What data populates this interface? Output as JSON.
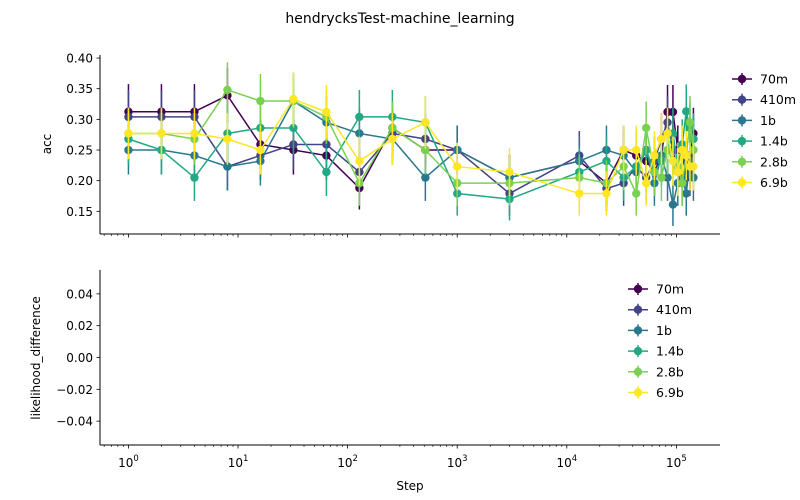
{
  "figure": {
    "title": "hendrycksTest-machine_learning",
    "xlabel": "Step"
  },
  "colors": {
    "70m": "#440154",
    "410m": "#414487",
    "1b": "#2a788e",
    "1.4b": "#22a884",
    "2.8b": "#7ad151",
    "6.9b": "#fde725"
  },
  "chart_data": [
    {
      "type": "line",
      "error_bars": true,
      "xscale": "log",
      "xlim": [
        0.55,
        250000
      ],
      "xticks": [
        "10^0",
        "10^1",
        "10^2",
        "10^3",
        "10^4",
        "10^5"
      ],
      "ylabel": "acc",
      "ylim": [
        0.113,
        0.405
      ],
      "yticks": [
        "0.15",
        "0.20",
        "0.25",
        "0.30",
        "0.35",
        "0.40"
      ],
      "legend": "upper right outside",
      "series": [
        {
          "name": "70m",
          "points": [
            [
              1,
              0.3125,
              0.045
            ],
            [
              2,
              0.3125,
              0.045
            ],
            [
              4,
              0.3125,
              0.045
            ],
            [
              8,
              0.339,
              0.045
            ],
            [
              16,
              0.259,
              0.04
            ],
            [
              32,
              0.25,
              0.04
            ],
            [
              64,
              0.241,
              0.04
            ],
            [
              128,
              0.188,
              0.035
            ],
            [
              256,
              0.286,
              0.043
            ],
            [
              512,
              0.25,
              0.04
            ],
            [
              1000,
              0.25,
              0.04
            ],
            [
              3000,
              0.205,
              0.037
            ],
            [
              13000,
              0.232,
              0.04
            ],
            [
              23000,
              0.196,
              0.037
            ],
            [
              33000,
              0.25,
              0.04
            ],
            [
              43000,
              0.241,
              0.04
            ],
            [
              53000,
              0.232,
              0.04
            ],
            [
              63000,
              0.214,
              0.038
            ],
            [
              73000,
              0.241,
              0.04
            ],
            [
              83000,
              0.312,
              0.044
            ],
            [
              93000,
              0.312,
              0.044
            ],
            [
              103000,
              0.25,
              0.04
            ],
            [
              113000,
              0.25,
              0.04
            ],
            [
              123000,
              0.205,
              0.037
            ],
            [
              133000,
              0.241,
              0.04
            ],
            [
              143000,
              0.277,
              0.042
            ]
          ]
        },
        {
          "name": "410m",
          "points": [
            [
              1,
              0.304,
              0.044
            ],
            [
              2,
              0.304,
              0.044
            ],
            [
              4,
              0.304,
              0.044
            ],
            [
              8,
              0.223,
              0.039
            ],
            [
              16,
              0.241,
              0.04
            ],
            [
              32,
              0.259,
              0.041
            ],
            [
              64,
              0.259,
              0.041
            ],
            [
              128,
              0.214,
              0.038
            ],
            [
              256,
              0.277,
              0.042
            ],
            [
              512,
              0.268,
              0.042
            ],
            [
              1000,
              0.25,
              0.04
            ],
            [
              3000,
              0.179,
              0.036
            ],
            [
              13000,
              0.241,
              0.04
            ],
            [
              23000,
              0.187,
              0.037
            ],
            [
              33000,
              0.196,
              0.037
            ],
            [
              43000,
              0.223,
              0.039
            ],
            [
              53000,
              0.205,
              0.038
            ],
            [
              63000,
              0.232,
              0.04
            ],
            [
              73000,
              0.268,
              0.042
            ],
            [
              83000,
              0.295,
              0.043
            ],
            [
              93000,
              0.25,
              0.04
            ],
            [
              103000,
              0.214,
              0.039
            ],
            [
              113000,
              0.196,
              0.037
            ],
            [
              123000,
              0.232,
              0.04
            ],
            [
              133000,
              0.214,
              0.039
            ],
            [
              143000,
              0.268,
              0.042
            ]
          ]
        },
        {
          "name": "1b",
          "points": [
            [
              1,
              0.25,
              0.04
            ],
            [
              2,
              0.25,
              0.04
            ],
            [
              4,
              0.241,
              0.04
            ],
            [
              8,
              0.223,
              0.039
            ],
            [
              16,
              0.232,
              0.04
            ],
            [
              32,
              0.33,
              0.044
            ],
            [
              64,
              0.295,
              0.043
            ],
            [
              128,
              0.277,
              0.042
            ],
            [
              256,
              0.268,
              0.042
            ],
            [
              512,
              0.205,
              0.038
            ],
            [
              1000,
              0.25,
              0.04
            ],
            [
              3000,
              0.205,
              0.038
            ],
            [
              13000,
              0.232,
              0.04
            ],
            [
              23000,
              0.25,
              0.04
            ],
            [
              33000,
              0.241,
              0.04
            ],
            [
              43000,
              0.214,
              0.039
            ],
            [
              53000,
              0.25,
              0.04
            ],
            [
              63000,
              0.196,
              0.037
            ],
            [
              73000,
              0.241,
              0.04
            ],
            [
              83000,
              0.205,
              0.038
            ],
            [
              93000,
              0.161,
              0.035
            ],
            [
              103000,
              0.196,
              0.037
            ],
            [
              113000,
              0.205,
              0.038
            ],
            [
              123000,
              0.179,
              0.036
            ],
            [
              133000,
              0.232,
              0.04
            ],
            [
              143000,
              0.205,
              0.038
            ]
          ]
        },
        {
          "name": "1.4b",
          "points": [
            [
              1,
              0.268,
              0.042
            ],
            [
              2,
              0.25,
              0.04
            ],
            [
              4,
              0.205,
              0.038
            ],
            [
              8,
              0.277,
              0.042
            ],
            [
              16,
              0.286,
              0.043
            ],
            [
              32,
              0.286,
              0.043
            ],
            [
              64,
              0.214,
              0.039
            ],
            [
              128,
              0.304,
              0.044
            ],
            [
              256,
              0.304,
              0.044
            ],
            [
              512,
              0.295,
              0.043
            ],
            [
              1000,
              0.179,
              0.036
            ],
            [
              3000,
              0.17,
              0.035
            ],
            [
              13000,
              0.214,
              0.039
            ],
            [
              23000,
              0.232,
              0.04
            ],
            [
              33000,
              0.205,
              0.038
            ],
            [
              43000,
              0.223,
              0.039
            ],
            [
              53000,
              0.25,
              0.04
            ],
            [
              63000,
              0.214,
              0.039
            ],
            [
              73000,
              0.232,
              0.04
            ],
            [
              83000,
              0.25,
              0.04
            ],
            [
              93000,
              0.277,
              0.042
            ],
            [
              103000,
              0.223,
              0.039
            ],
            [
              113000,
              0.259,
              0.041
            ],
            [
              123000,
              0.313,
              0.044
            ],
            [
              133000,
              0.286,
              0.043
            ],
            [
              143000,
              0.268,
              0.042
            ]
          ]
        },
        {
          "name": "2.8b",
          "points": [
            [
              1,
              0.277,
              0.042
            ],
            [
              2,
              0.277,
              0.042
            ],
            [
              4,
              0.268,
              0.042
            ],
            [
              8,
              0.348,
              0.045
            ],
            [
              16,
              0.33,
              0.044
            ],
            [
              32,
              0.33,
              0.044
            ],
            [
              64,
              0.304,
              0.044
            ],
            [
              128,
              0.196,
              0.037
            ],
            [
              256,
              0.286,
              0.043
            ],
            [
              512,
              0.25,
              0.04
            ],
            [
              1000,
              0.196,
              0.037
            ],
            [
              3000,
              0.196,
              0.037
            ],
            [
              13000,
              0.205,
              0.038
            ],
            [
              23000,
              0.196,
              0.037
            ],
            [
              33000,
              0.223,
              0.039
            ],
            [
              43000,
              0.179,
              0.036
            ],
            [
              53000,
              0.286,
              0.043
            ],
            [
              63000,
              0.214,
              0.039
            ],
            [
              73000,
              0.205,
              0.038
            ],
            [
              83000,
              0.25,
              0.04
            ],
            [
              93000,
              0.232,
              0.04
            ],
            [
              103000,
              0.223,
              0.039
            ],
            [
              113000,
              0.196,
              0.037
            ],
            [
              123000,
              0.241,
              0.04
            ],
            [
              133000,
              0.295,
              0.043
            ],
            [
              143000,
              0.25,
              0.04
            ]
          ]
        },
        {
          "name": "6.9b",
          "points": [
            [
              1,
              0.277,
              0.042
            ],
            [
              2,
              0.277,
              0.042
            ],
            [
              4,
              0.277,
              0.042
            ],
            [
              8,
              0.268,
              0.042
            ],
            [
              16,
              0.25,
              0.04
            ],
            [
              32,
              0.333,
              0.044
            ],
            [
              64,
              0.312,
              0.044
            ],
            [
              128,
              0.232,
              0.04
            ],
            [
              256,
              0.268,
              0.042
            ],
            [
              512,
              0.295,
              0.043
            ],
            [
              1000,
              0.223,
              0.039
            ],
            [
              3000,
              0.214,
              0.039
            ],
            [
              13000,
              0.179,
              0.036
            ],
            [
              23000,
              0.179,
              0.036
            ],
            [
              33000,
              0.25,
              0.04
            ],
            [
              43000,
              0.25,
              0.04
            ],
            [
              53000,
              0.196,
              0.037
            ],
            [
              63000,
              0.241,
              0.04
            ],
            [
              73000,
              0.268,
              0.042
            ],
            [
              83000,
              0.277,
              0.042
            ],
            [
              93000,
              0.232,
              0.04
            ],
            [
              103000,
              0.214,
              0.039
            ],
            [
              113000,
              0.25,
              0.04
            ],
            [
              123000,
              0.241,
              0.04
            ],
            [
              133000,
              0.223,
              0.039
            ],
            [
              143000,
              0.223,
              0.039
            ]
          ]
        }
      ]
    },
    {
      "type": "line",
      "xscale": "log",
      "xlim": [
        0.55,
        250000
      ],
      "xticks": [
        "10^0",
        "10^1",
        "10^2",
        "10^3",
        "10^4",
        "10^5"
      ],
      "ylabel": "likelihood_difference",
      "ylim": [
        -0.055,
        0.055
      ],
      "yticks": [
        "−0.04",
        "−0.02",
        "0.00",
        "0.02",
        "0.04"
      ],
      "legend": "upper right",
      "series": [
        {
          "name": "70m",
          "points": []
        },
        {
          "name": "410m",
          "points": []
        },
        {
          "name": "1b",
          "points": []
        },
        {
          "name": "1.4b",
          "points": []
        },
        {
          "name": "2.8b",
          "points": []
        },
        {
          "name": "6.9b",
          "points": []
        }
      ]
    }
  ]
}
